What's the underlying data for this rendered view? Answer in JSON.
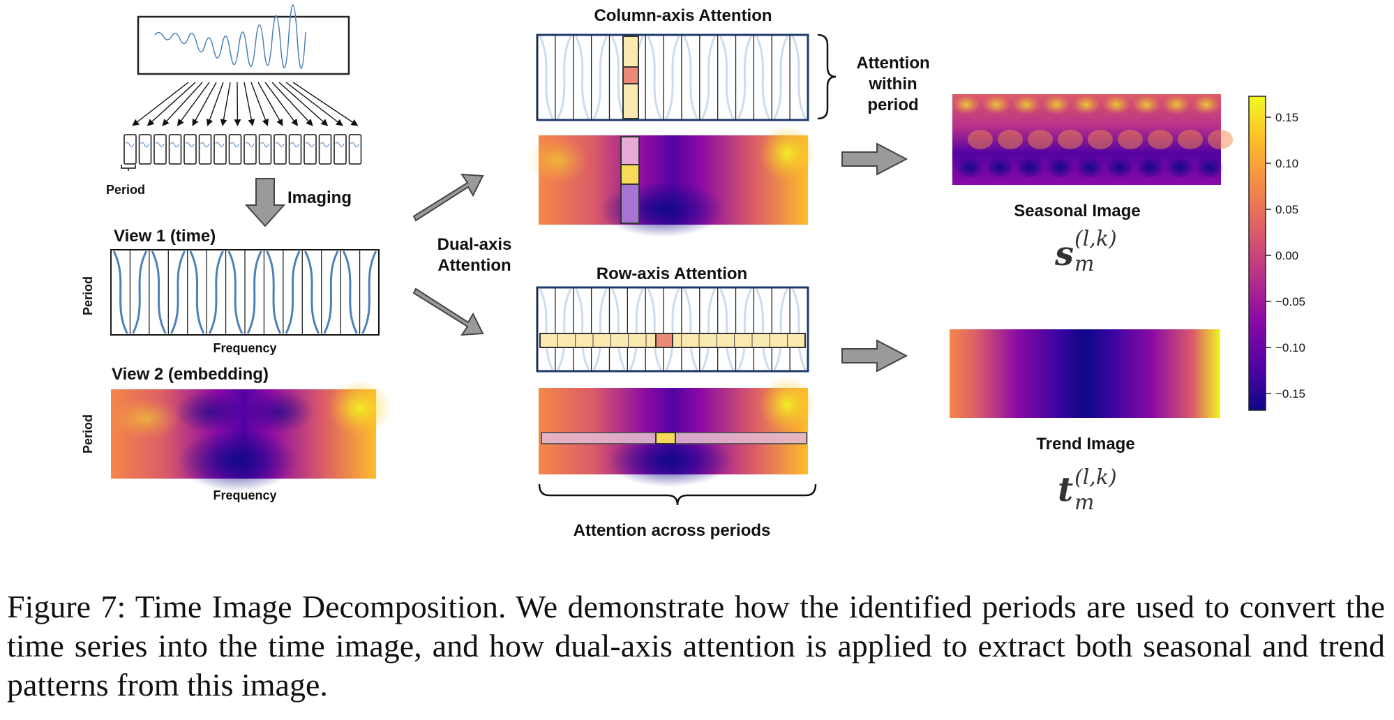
{
  "figure": {
    "imaging_label": "Imaging",
    "period_label": "Period",
    "view1_title": "View 1 (time)",
    "view2_title": "View 2 (embedding)",
    "axis_period": "Period",
    "axis_frequency": "Frequency",
    "dual_axis_line1": "Dual-axis",
    "dual_axis_line2": "Attention",
    "column_axis_title": "Column-axis Attention",
    "row_axis_title": "Row-axis Attention",
    "attention_within_line1": "Attention",
    "attention_within_line2": "within",
    "attention_within_line3": "period",
    "attention_across": "Attention across periods",
    "seasonal_title": "Seasonal Image",
    "trend_title": "Trend Image",
    "seasonal_symbol": "s",
    "trend_symbol": "t",
    "superscript": "(l,k)",
    "subscript": "m",
    "colorbar_ticks": [
      "0.15",
      "0.10",
      "0.05",
      "0.00",
      "−0.05",
      "−0.10",
      "−0.15"
    ],
    "colormap": [
      "#0d0887",
      "#5302a3",
      "#8b0aa5",
      "#b83289",
      "#db5c68",
      "#f48849",
      "#febd2a",
      "#f0f921"
    ]
  },
  "caption": {
    "label": "Figure 7:",
    "text": "Time Image Decomposition. We demonstrate how the identified periods are used to convert the time series into the time image, and how dual-axis attention is applied to extract both seasonal and trend patterns from this image."
  }
}
